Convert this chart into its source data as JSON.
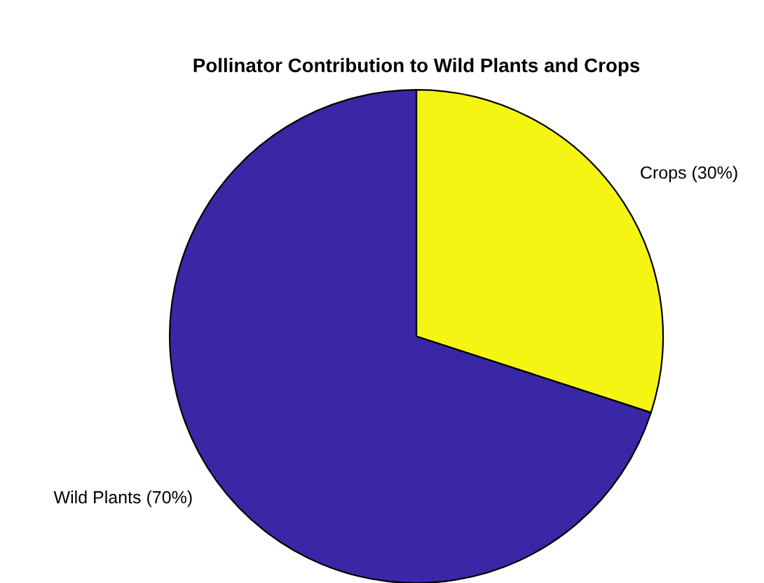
{
  "chart_data": {
    "type": "pie",
    "title": "Pollinator Contribution to Wild Plants and Crops",
    "categories": [
      "Crops (30%)",
      "Wild Plants (70%)"
    ],
    "values": [
      30,
      70
    ],
    "colors": [
      "#f5f514",
      "#3a27a6"
    ]
  }
}
